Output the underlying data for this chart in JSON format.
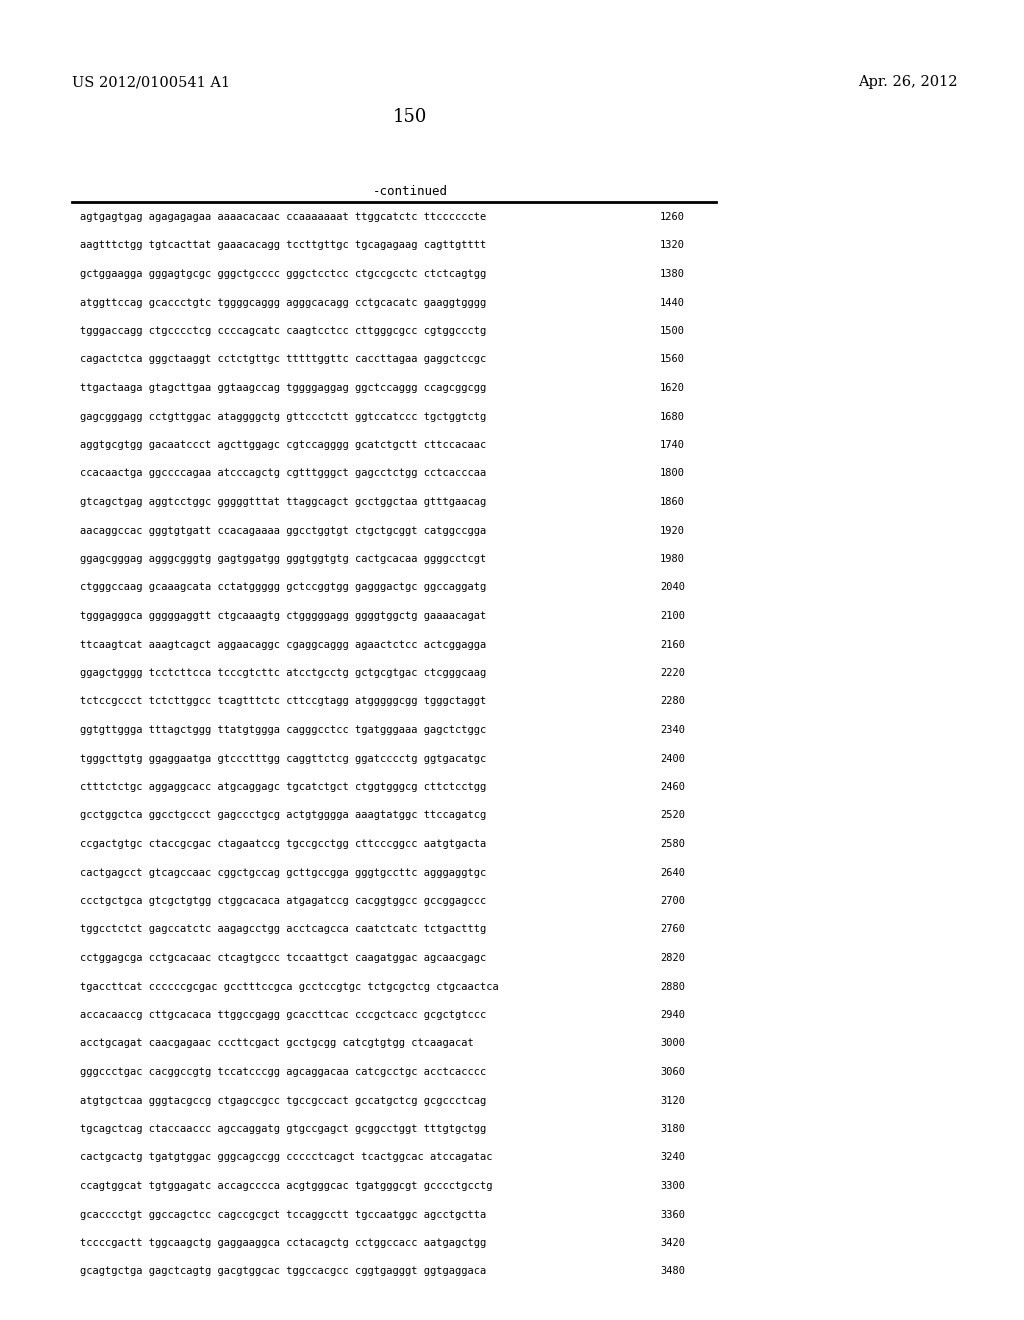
{
  "header_left": "US 2012/0100541 A1",
  "header_right": "Apr. 26, 2012",
  "page_number": "150",
  "continued_label": "-continued",
  "background_color": "#ffffff",
  "text_color": "#000000",
  "sequences": [
    [
      "agtgagtgag agagagagaa aaaacacaac ccaaaaaaat ttggcatctc ttccccccte",
      "1260"
    ],
    [
      "aagtttctgg tgtcacttat gaaacacagg tccttgttgc tgcagagaag cagttgtttt",
      "1320"
    ],
    [
      "gctggaagga gggagtgcgc gggctgcccc gggctcctcc ctgccgcctc ctctcagtgg",
      "1380"
    ],
    [
      "atggttccag gcaccctgtc tggggcaggg agggcacagg cctgcacatc gaaggtgggg",
      "1440"
    ],
    [
      "tgggaccagg ctgcccctcg ccccagcatc caagtcctcc cttgggcgcc cgtggccctg",
      "1500"
    ],
    [
      "cagactctca gggctaaggt cctctgttgc tttttggttc caccttagaa gaggctccgc",
      "1560"
    ],
    [
      "ttgactaaga gtagcttgaa ggtaagccag tggggaggag ggctccaggg ccagcggcgg",
      "1620"
    ],
    [
      "gagcgggagg cctgttggac ataggggctg gttccctctt ggtccatccc tgctggtctg",
      "1680"
    ],
    [
      "aggtgcgtgg gacaatccct agcttggagc cgtccagggg gcatctgctt cttccacaac",
      "1740"
    ],
    [
      "ccacaactga ggccccagaa atcccagctg cgtttgggct gagcctctgg cctcacccaa",
      "1800"
    ],
    [
      "gtcagctgag aggtcctggc gggggtttat ttaggcagct gcctggctaa gtttgaacag",
      "1860"
    ],
    [
      "aacaggccac gggtgtgatt ccacagaaaa ggcctggtgt ctgctgcggt catggccgga",
      "1920"
    ],
    [
      "ggagcgggag agggcgggtg gagtggatgg gggtggtgtg cactgcacaa ggggcctcgt",
      "1980"
    ],
    [
      "ctgggccaag gcaaagcata cctatggggg gctccggtgg gagggactgc ggccaggatg",
      "2040"
    ],
    [
      "tgggagggca gggggaggtt ctgcaaagtg ctgggggagg ggggtggctg gaaaacagat",
      "2100"
    ],
    [
      "ttcaagtcat aaagtcagct aggaacaggc cgaggcaggg agaactctcc actcggagga",
      "2160"
    ],
    [
      "ggagctgggg tcctcttcca tcccgtcttc atcctgcctg gctgcgtgac ctcgggcaag",
      "2220"
    ],
    [
      "tctccgccct tctcttggcc tcagtttctc cttccgtagg atgggggcgg tgggctaggt",
      "2280"
    ],
    [
      "ggtgttggga tttagctggg ttatgtggga cagggcctcc tgatgggaaa gagctctggc",
      "2340"
    ],
    [
      "tgggcttgtg ggaggaatga gtccctttgg caggttctcg ggatcccctg ggtgacatgc",
      "2400"
    ],
    [
      "ctttctctgc aggaggcacc atgcaggagc tgcatctgct ctggtgggcg cttctcctgg",
      "2460"
    ],
    [
      "gcctggctca ggcctgccct gagccctgcg actgtgggga aaagtatggc ttccagatcg",
      "2520"
    ],
    [
      "ccgactgtgc ctaccgcgac ctagaatccg tgccgcctgg cttcccggcc aatgtgacta",
      "2580"
    ],
    [
      "cactgagcct gtcagccaac cggctgccag gcttgccgga gggtgccttc agggaggtgc",
      "2640"
    ],
    [
      "ccctgctgca gtcgctgtgg ctggcacaca atgagatccg cacggtggcc gccggagccc",
      "2700"
    ],
    [
      "tggcctctct gagccatctc aagagcctgg acctcagcca caatctcatc tctgactttg",
      "2760"
    ],
    [
      "cctggagcga cctgcacaac ctcagtgccc tccaattgct caagatggac agcaacgagc",
      "2820"
    ],
    [
      "tgaccttcat ccccccgcgac gcctttccgca gcctccgtgc tctgcgctcg ctgcaactca",
      "2880"
    ],
    [
      "accacaaccg cttgcacaca ttggccgagg gcaccttcac cccgctcacc gcgctgtccc",
      "2940"
    ],
    [
      "acctgcagat caacgagaac cccttcgact gcctgcgg catcgtgtgg ctcaagacat",
      "3000"
    ],
    [
      "gggccctgac cacggccgtg tccatcccgg agcaggacaa catcgcctgc acctcacccc",
      "3060"
    ],
    [
      "atgtgctcaa gggtacgccg ctgagccgcc tgccgccact gccatgctcg gcgccctcag",
      "3120"
    ],
    [
      "tgcagctcag ctaccaaccc agccaggatg gtgccgagct gcggcctggt tttgtgctgg",
      "3180"
    ],
    [
      "cactgcactg tgatgtggac gggcagccgg ccccctcagct tcactggcac atccagatac",
      "3240"
    ],
    [
      "ccagtggcat tgtggagatc accagcccca acgtgggcac tgatgggcgt gcccctgcctg",
      "3300"
    ],
    [
      "gcacccctgt ggccagctcc cagccgcgct tccaggcctt tgccaatggc agcctgctta",
      "3360"
    ],
    [
      "tccccgactt tggcaagctg gaggaaggca cctacagctg cctggccacc aatgagctgg",
      "3420"
    ],
    [
      "gcagtgctga gagctcagtg gacgtggcac tggccacgcc cggtgagggt ggtgaggaca",
      "3480"
    ]
  ]
}
